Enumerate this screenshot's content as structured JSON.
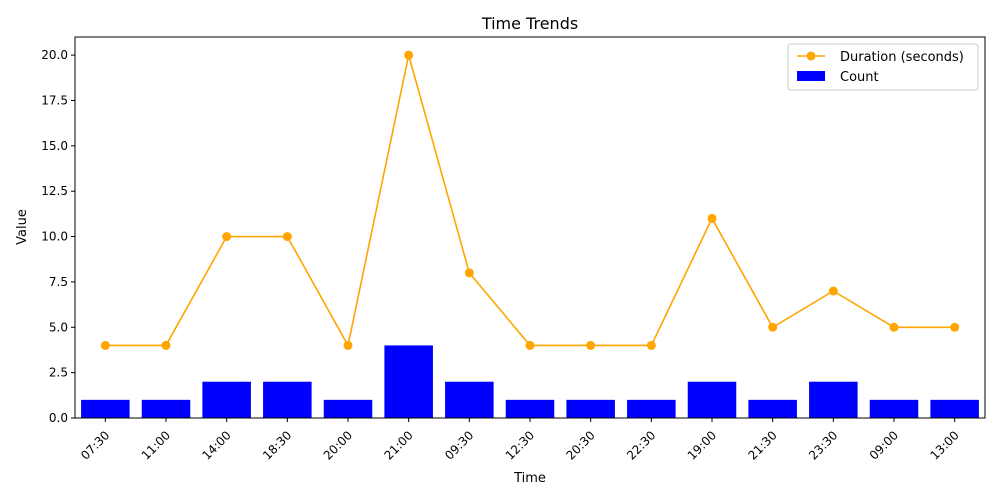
{
  "chart_data": {
    "type": "bar",
    "title": "Time Trends",
    "xlabel": "Time",
    "ylabel": "Value",
    "ylim": [
      0,
      21
    ],
    "yticks": [
      "0.0",
      "2.5",
      "5.0",
      "7.5",
      "10.0",
      "12.5",
      "15.0",
      "17.5",
      "20.0"
    ],
    "grid": false,
    "legend_position": "top-right",
    "categories": [
      "07:30",
      "11:00",
      "14:00",
      "18:30",
      "20:00",
      "21:00",
      "09:30",
      "12:30",
      "20:30",
      "22:30",
      "19:00",
      "21:30",
      "23:30",
      "09:00",
      "13:00"
    ],
    "series": [
      {
        "name": "Duration (seconds)",
        "type": "line",
        "color": "#ffa500",
        "marker": "circle",
        "values": [
          4,
          4,
          10,
          10,
          4,
          20,
          8,
          4,
          4,
          4,
          11,
          5,
          7,
          5,
          5
        ]
      },
      {
        "name": "Count",
        "type": "bar",
        "color": "#0000ff",
        "values": [
          1,
          1,
          2,
          2,
          1,
          4,
          2,
          1,
          1,
          1,
          2,
          1,
          2,
          1,
          1
        ]
      }
    ]
  }
}
